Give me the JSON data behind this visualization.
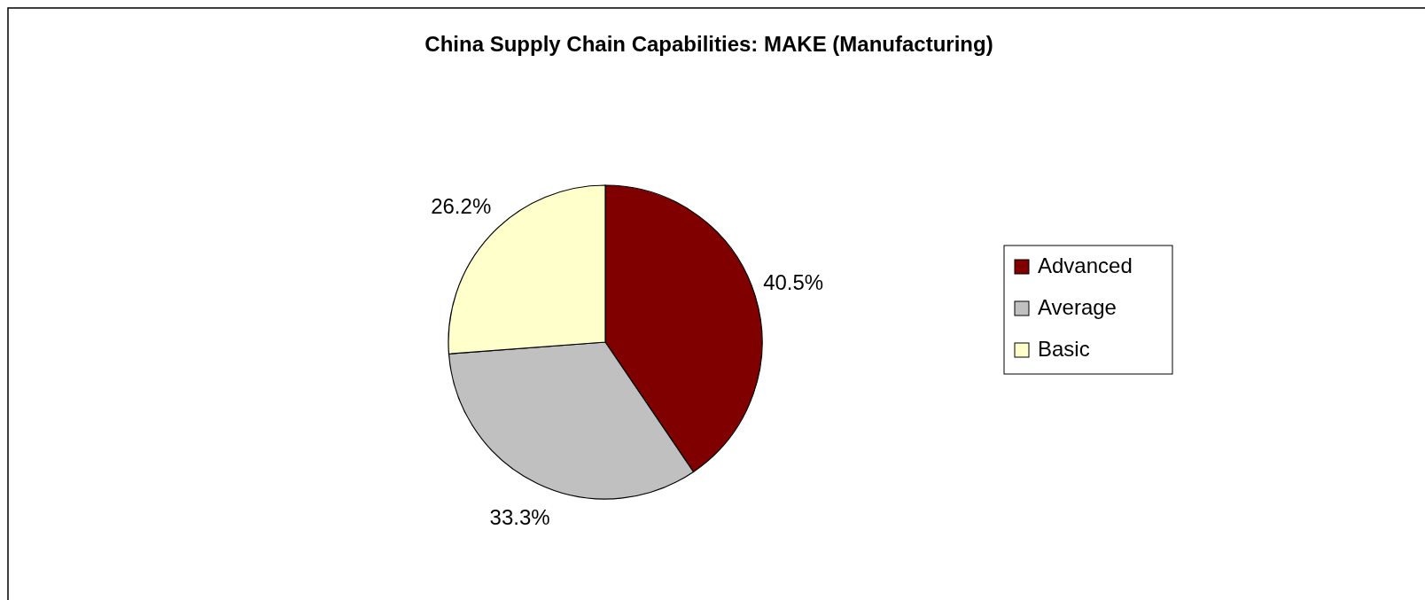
{
  "chart_data": {
    "type": "pie",
    "title": "China Supply Chain Capabilities: MAKE (Manufacturing)",
    "categories": [
      "Advanced",
      "Average",
      "Basic"
    ],
    "values": [
      40.5,
      33.3,
      26.2
    ],
    "colors": [
      "#800000",
      "#c0c0c0",
      "#ffffcc"
    ],
    "value_labels": [
      "40.5%",
      "33.3%",
      "26.2%"
    ],
    "legend": "right"
  }
}
